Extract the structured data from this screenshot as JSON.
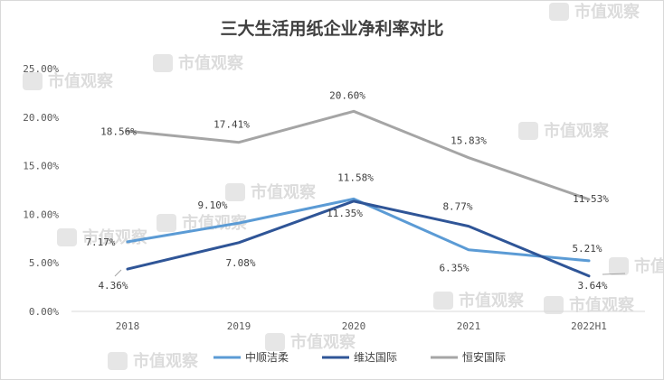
{
  "watermark": {
    "text": "市值观察"
  },
  "chart_data": {
    "type": "line",
    "title": "三大生活用纸企业净利率对比",
    "xlabel": "",
    "ylabel": "",
    "categories": [
      "2018",
      "2019",
      "2020",
      "2021",
      "2022H1"
    ],
    "y_ticks": [
      "0.00%",
      "5.00%",
      "10.00%",
      "15.00%",
      "20.00%",
      "25.00%"
    ],
    "ylim": [
      0,
      25
    ],
    "grid": false,
    "legend_position": "bottom",
    "series": [
      {
        "name": "中顺洁柔",
        "color": "#5b9bd5",
        "values": [
          7.17,
          9.1,
          11.58,
          6.35,
          5.21
        ],
        "labels": [
          "7.17%",
          "9.10%",
          "11.58%",
          "6.35%",
          "5.21%"
        ]
      },
      {
        "name": "维达国际",
        "color": "#2f5597",
        "values": [
          4.36,
          7.08,
          11.35,
          8.77,
          3.64
        ],
        "labels": [
          "4.36%",
          "7.08%",
          "11.35%",
          "8.77%",
          "3.64%"
        ]
      },
      {
        "name": "恒安国际",
        "color": "#a5a5a5",
        "values": [
          18.56,
          17.41,
          20.6,
          15.83,
          11.53
        ],
        "labels": [
          "18.56%",
          "17.41%",
          "20.60%",
          "15.83%",
          "11.53%"
        ]
      }
    ]
  }
}
